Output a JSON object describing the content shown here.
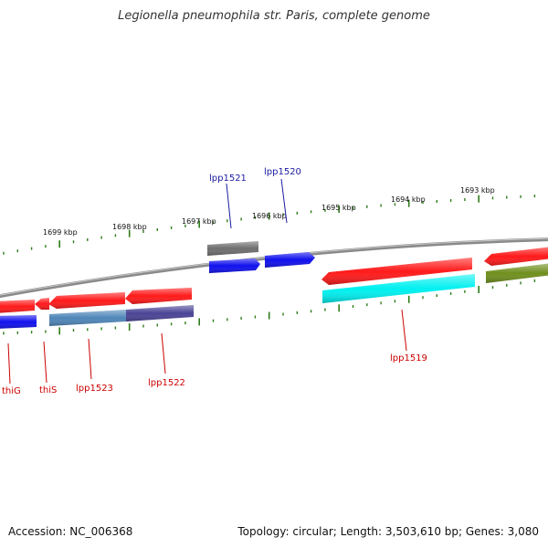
{
  "title": "Legionella pneumophila str. Paris, complete genome",
  "footer": {
    "accession": "Accession: NC_006368",
    "summary": "Topology: circular; Length: 3,503,610 bp; Genes: 3,080"
  },
  "colors": {
    "backbone": "#8a8a8a",
    "tick": "#2e7d1a",
    "label_forward": "#1a1aa0",
    "label_reverse": "#cc0000",
    "red": "#ff1a1a",
    "blue": "#1010ee",
    "gray": "#6e6e6e",
    "cyan": "#00f0f0",
    "steelblue": "#4f86b8",
    "slateblue": "#4a4496",
    "olive": "#6f8f1e",
    "bar_fill_note": "gene features drawn as colored arrows along the backbone"
  },
  "scale_labels": [
    "1699 kbp",
    "1698 kbp",
    "1697 kbp",
    "1696 kbp",
    "1695 kbp",
    "1694 kbp",
    "1693 kbp"
  ],
  "forward_genes": [
    {
      "label": "lpp1521"
    },
    {
      "label": "lpp1520"
    }
  ],
  "reverse_genes": [
    {
      "label": "thiG"
    },
    {
      "label": "thiS"
    },
    {
      "label": "lpp1523"
    },
    {
      "label": "lpp1522"
    },
    {
      "label": "lpp1519"
    }
  ]
}
